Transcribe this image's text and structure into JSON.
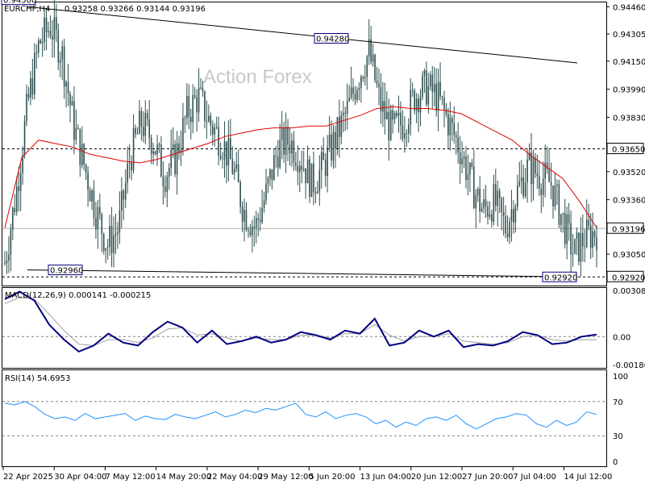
{
  "header": {
    "symbol": "EURCHF,H4",
    "ohlc": "0.93258 0.93266 0.93144 0.93196"
  },
  "watermark": "Action Forex",
  "colors": {
    "candles": "#2f4f4f",
    "ma": "#e00000",
    "macd": "#000080",
    "macd_signal": "#a0a0a0",
    "rsi": "#1e90ff",
    "trend": "#000000",
    "grid_dash": "#000000"
  },
  "chart_data": [
    {
      "type": "candlestick",
      "title": "EURCHF,H4",
      "subtitle": "0.93258 0.93266 0.93144 0.93196",
      "ylim": [
        0.9288,
        0.9448
      ],
      "y_ticks": [
        "0.94460",
        "0.94305",
        "0.94150",
        "0.93990",
        "0.93830",
        "0.93520",
        "0.93360",
        "0.93050"
      ],
      "x_ticks": [
        "22 Apr 2025",
        "30 Apr 04:00",
        "7 May 12:00",
        "14 May 20:00",
        "22 May 04:00",
        "29 May 12:00",
        "5 Jun 20:00",
        "13 Jun 04:00",
        "20 Jun 12:00",
        "27 Jun 20:00",
        "7 Jul 04:00",
        "14 Jul 12:00"
      ],
      "levels": [
        {
          "label": "0.93650",
          "value": 0.9365,
          "style": "dashed"
        },
        {
          "label": "0.93196",
          "value": 0.93196,
          "style": "current"
        },
        {
          "label": "0.92920",
          "value": 0.9292,
          "style": "dashed"
        }
      ],
      "annotations": [
        {
          "label": "0.94500",
          "date": "22 Apr 2025",
          "value": 0.945
        },
        {
          "label": "0.94280",
          "date": "5 Jun 20:00",
          "value": 0.9428
        },
        {
          "label": "0.92960",
          "date": "30 Apr 04:00",
          "value": 0.9296
        },
        {
          "label": "0.92920",
          "date": "14 Jul 12:00",
          "value": 0.9292
        }
      ],
      "trendlines": [
        {
          "from": {
            "date": "22 Apr 2025",
            "value": 0.9446
          },
          "to": {
            "date": "14 Jul 12:00",
            "value": 0.9414
          }
        },
        {
          "from": {
            "date": "22 Apr 2025",
            "value": 0.9296
          },
          "to": {
            "date": "14 Jul 12:00",
            "value": 0.9292
          }
        }
      ],
      "series": [
        {
          "name": "close",
          "values": [
            0.93,
            0.934,
            0.939,
            0.9425,
            0.9435,
            0.942,
            0.938,
            0.9355,
            0.933,
            0.931,
            0.932,
            0.936,
            0.938,
            0.937,
            0.935,
            0.936,
            0.9385,
            0.9395,
            0.938,
            0.937,
            0.9355,
            0.933,
            0.932,
            0.934,
            0.9365,
            0.937,
            0.936,
            0.9345,
            0.9355,
            0.937,
            0.9385,
            0.9405,
            0.942,
            0.939,
            0.9375,
            0.938,
            0.9395,
            0.94,
            0.9395,
            0.938,
            0.9365,
            0.9345,
            0.933,
            0.9335,
            0.932,
            0.934,
            0.9355,
            0.935,
            0.9345,
            0.9325,
            0.9305,
            0.9315,
            0.9318
          ]
        },
        {
          "name": "MA",
          "values": [
            0.932,
            0.936,
            0.937,
            0.9368,
            0.9366,
            0.9362,
            0.936,
            0.9358,
            0.9357,
            0.9359,
            0.9362,
            0.9365,
            0.9368,
            0.9372,
            0.9374,
            0.9376,
            0.9377,
            0.9377,
            0.9378,
            0.9378,
            0.9381,
            0.9384,
            0.9388,
            0.9389,
            0.9388,
            0.9388,
            0.9387,
            0.9385,
            0.938,
            0.9375,
            0.937,
            0.9362,
            0.9355,
            0.9348,
            0.9335,
            0.932
          ]
        }
      ]
    },
    {
      "type": "line",
      "title": "MACD(12,26,9) 0.000141 -0.000215",
      "ylim": [
        -0.001868,
        0.003081
      ],
      "y_ticks": [
        "0.003081",
        "0.00",
        "-0.001868"
      ],
      "series": [
        {
          "name": "MACD",
          "values": [
            0.0025,
            0.003,
            0.0024,
            0.0008,
            -0.0002,
            -0.001,
            -0.0006,
            0.0002,
            -0.0004,
            -0.0006,
            0.0003,
            0.001,
            0.0006,
            -0.0004,
            0.0004,
            -0.0005,
            -0.0003,
            0.0,
            -0.0004,
            -0.0002,
            0.0003,
            0.0001,
            -0.0002,
            0.0004,
            0.0002,
            0.0012,
            -0.0006,
            -0.0004,
            0.0004,
            0.0,
            0.0004,
            -0.0007,
            -0.0005,
            -0.0006,
            -0.0003,
            0.0003,
            0.0001,
            -0.0005,
            -0.0004,
            0.0,
            0.00014
          ]
        },
        {
          "name": "Signal",
          "values": [
            0.0022,
            0.0026,
            0.0025,
            0.0015,
            0.0004,
            -0.0005,
            -0.0006,
            -0.0002,
            -0.0002,
            -0.0004,
            -0.0001,
            0.0005,
            0.0006,
            0.0001,
            0.0002,
            -0.0001,
            -0.0003,
            -0.0001,
            -0.0002,
            -0.0002,
            0.0001,
            0.0001,
            -0.0001,
            0.0002,
            0.0002,
            0.0008,
            0.0001,
            -0.0003,
            0.0,
            0.0,
            0.0002,
            -0.0003,
            -0.0004,
            -0.0005,
            -0.0004,
            0.0,
            0.0001,
            -0.0002,
            -0.0003,
            -0.0002,
            -0.000215
          ]
        }
      ]
    },
    {
      "type": "line",
      "title": "RSI(14) 54.6953",
      "ylim": [
        0,
        100
      ],
      "y_ticks": [
        "100",
        "70",
        "30",
        "0"
      ],
      "levels": [
        70,
        30
      ],
      "series": [
        {
          "name": "RSI",
          "values": [
            68,
            66,
            70,
            64,
            55,
            50,
            52,
            48,
            56,
            50,
            52,
            54,
            56,
            48,
            53,
            50,
            49,
            55,
            52,
            50,
            54,
            58,
            52,
            55,
            60,
            57,
            62,
            60,
            64,
            68,
            55,
            52,
            58,
            50,
            54,
            56,
            52,
            44,
            48,
            40,
            46,
            42,
            50,
            52,
            48,
            54,
            44,
            38,
            44,
            50,
            52,
            56,
            54,
            44,
            40,
            48,
            42,
            46,
            58,
            55
          ]
        }
      ]
    }
  ]
}
